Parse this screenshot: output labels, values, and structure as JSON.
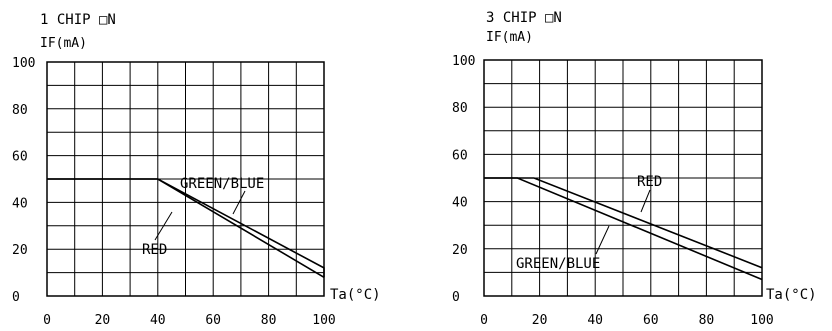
{
  "chart_data": [
    {
      "type": "line",
      "title": "1 CHIP □N",
      "ylabel": "IF(mA)",
      "xlabel": "Ta(°C)",
      "xlim": [
        0,
        100
      ],
      "ylim": [
        0,
        100
      ],
      "xticks": [
        "0",
        "20",
        "40",
        "60",
        "80",
        "100"
      ],
      "yticks": [
        "0",
        "20",
        "40",
        "60",
        "80",
        "100"
      ],
      "grid": true,
      "series": [
        {
          "name": "GREEN/BLUE",
          "x": [
            0,
            40,
            100,
            100
          ],
          "y": [
            50,
            50,
            12,
            8
          ]
        },
        {
          "name": "RED",
          "x": [
            0,
            30,
            40,
            100
          ],
          "y": [
            50,
            50,
            50,
            8
          ]
        }
      ],
      "annotations": [
        {
          "text": "GREEN/BLUE"
        },
        {
          "text": "RED"
        }
      ]
    },
    {
      "type": "line",
      "title": "3 CHIP □N",
      "ylabel": "IF(mA)",
      "xlabel": "Ta(°C)",
      "xlim": [
        0,
        100
      ],
      "ylim": [
        0,
        100
      ],
      "xticks": [
        "0",
        "20",
        "40",
        "60",
        "80",
        "100"
      ],
      "yticks": [
        "0",
        "20",
        "40",
        "60",
        "80",
        "100"
      ],
      "grid": true,
      "series": [
        {
          "name": "RED",
          "x": [
            0,
            18,
            100
          ],
          "y": [
            50,
            50,
            12
          ]
        },
        {
          "name": "GREEN/BLUE",
          "x": [
            0,
            12,
            100
          ],
          "y": [
            50,
            50,
            7
          ]
        }
      ],
      "annotations": [
        {
          "text": "RED"
        },
        {
          "text": "GREEN/BLUE"
        }
      ]
    }
  ]
}
